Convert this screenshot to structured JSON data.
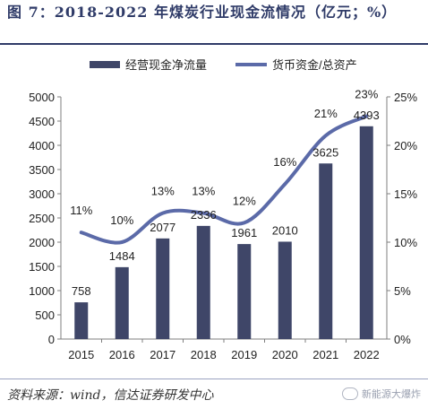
{
  "title": "图  7：2018-2022 年煤炭行业现金流情况（亿元；%）",
  "source": "资料来源：wind，信达证券研发中心",
  "watermark": "新能源大爆炸",
  "colors": {
    "bar": "#3f4668",
    "line": "#5b6aa8",
    "title": "#2f3b68",
    "axis": "#7f7f7f",
    "text": "#222222"
  },
  "chart_data": {
    "type": "bar",
    "categories": [
      "2015",
      "2016",
      "2017",
      "2018",
      "2019",
      "2020",
      "2021",
      "2022"
    ],
    "series": [
      {
        "name": "经营现金净流量",
        "type": "bar",
        "axis": "left",
        "values": [
          758,
          1484,
          2077,
          2336,
          1961,
          2010,
          3625,
          4393
        ],
        "labels": [
          "758",
          "1484",
          "2077",
          "2336",
          "1961",
          "2010",
          "3625",
          "4393"
        ]
      },
      {
        "name": "货币资金/总资产",
        "type": "line",
        "axis": "right",
        "values": [
          11,
          10,
          13,
          13,
          12,
          16,
          21,
          23
        ],
        "labels": [
          "11%",
          "10%",
          "13%",
          "13%",
          "12%",
          "16%",
          "21%",
          "23%"
        ]
      }
    ],
    "y_left": {
      "min": 0,
      "max": 5000,
      "step": 500,
      "ticks": [
        "0",
        "500",
        "1000",
        "1500",
        "2000",
        "2500",
        "3000",
        "3500",
        "4000",
        "4500",
        "5000"
      ]
    },
    "y_right": {
      "min": 0,
      "max": 25,
      "step": 5,
      "ticks": [
        "0%",
        "5%",
        "10%",
        "15%",
        "20%",
        "25%"
      ]
    },
    "legend_position": "top",
    "grid": false
  }
}
